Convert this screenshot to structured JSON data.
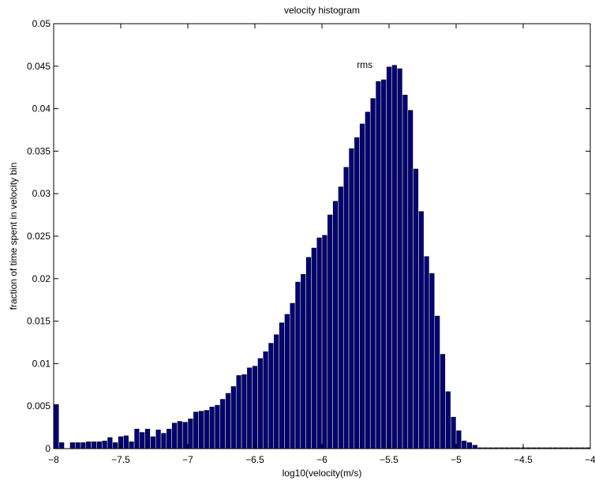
{
  "chart_data": {
    "type": "bar",
    "title": "velocity histogram",
    "xlabel": "log10(velocity(m/s)",
    "ylabel": "fraction of time spent in velocity bin",
    "xlim": [
      -8,
      -4
    ],
    "ylim": [
      0,
      0.05
    ],
    "x_ticks": [
      -8,
      -7.5,
      -7,
      -6.5,
      -6,
      -5.5,
      -5,
      -4.5,
      -4
    ],
    "x_tick_labels": [
      "−8",
      "−7.5",
      "−7",
      "−6.5",
      "−6",
      "−5.5",
      "−5",
      "−4.5",
      "−4"
    ],
    "y_ticks": [
      0,
      0.005,
      0.01,
      0.015,
      0.02,
      0.025,
      0.03,
      0.035,
      0.04,
      0.045,
      0.05
    ],
    "y_tick_labels": [
      "0",
      "0.005",
      "0.01",
      "0.015",
      "0.02",
      "0.025",
      "0.03",
      "0.035",
      "0.04",
      "0.045",
      "0.05"
    ],
    "grid": false,
    "bar_color": "#00007f",
    "annotation": {
      "text": "rms",
      "x": -5.74,
      "y": 0.0448
    },
    "bin_width": 0.04,
    "x": [
      -7.98,
      -7.94,
      -7.9,
      -7.86,
      -7.82,
      -7.78,
      -7.74,
      -7.7,
      -7.66,
      -7.62,
      -7.58,
      -7.54,
      -7.5,
      -7.46,
      -7.42,
      -7.38,
      -7.34,
      -7.3,
      -7.26,
      -7.22,
      -7.18,
      -7.14,
      -7.1,
      -7.06,
      -7.02,
      -6.98,
      -6.94,
      -6.9,
      -6.86,
      -6.82,
      -6.78,
      -6.74,
      -6.7,
      -6.66,
      -6.62,
      -6.58,
      -6.54,
      -6.5,
      -6.46,
      -6.42,
      -6.38,
      -6.34,
      -6.3,
      -6.26,
      -6.22,
      -6.18,
      -6.14,
      -6.1,
      -6.06,
      -6.02,
      -5.98,
      -5.94,
      -5.9,
      -5.86,
      -5.82,
      -5.78,
      -5.74,
      -5.7,
      -5.66,
      -5.62,
      -5.58,
      -5.54,
      -5.5,
      -5.46,
      -5.42,
      -5.38,
      -5.34,
      -5.3,
      -5.26,
      -5.22,
      -5.18,
      -5.14,
      -5.1,
      -5.06,
      -5.02,
      -4.98,
      -4.94,
      -4.9,
      -4.86,
      -4.82,
      -4.78,
      -4.74,
      -4.7,
      -4.66,
      -4.62,
      -4.58,
      -4.54,
      -4.5,
      -4.46,
      -4.42,
      -4.38,
      -4.34,
      -4.3,
      -4.26,
      -4.22,
      -4.18,
      -4.14,
      -4.1,
      -4.06,
      -4.02
    ],
    "values": [
      0.0052,
      0.0007,
      0,
      0.0007,
      0.0007,
      0.0007,
      0.0008,
      0.0008,
      0.0008,
      0.0009,
      0.0013,
      0.0007,
      0.0014,
      0.0015,
      0.0008,
      0.0023,
      0.0019,
      0.0023,
      0.0014,
      0.0022,
      0.0018,
      0.0023,
      0.003,
      0.0032,
      0.0031,
      0.0035,
      0.0043,
      0.0044,
      0.0045,
      0.0049,
      0.0051,
      0.0058,
      0.0065,
      0.0073,
      0.0086,
      0.0087,
      0.0095,
      0.0097,
      0.0106,
      0.0114,
      0.0124,
      0.0134,
      0.0148,
      0.0158,
      0.0171,
      0.0196,
      0.0205,
      0.0225,
      0.0236,
      0.0248,
      0.0251,
      0.0275,
      0.0291,
      0.0308,
      0.0331,
      0.0353,
      0.0366,
      0.0382,
      0.0396,
      0.0412,
      0.0432,
      0.0434,
      0.0449,
      0.0451,
      0.0447,
      0.0416,
      0.0398,
      0.0329,
      0.0279,
      0.0226,
      0.0206,
      0.0156,
      0.0111,
      0.0067,
      0.0037,
      0.0021,
      0.0009,
      0.0007,
      0.0004,
      0.0001,
      0.0001,
      0.0001,
      0.0001,
      0.0001,
      0.0001,
      0.0001,
      0.0001,
      0.0001,
      0.0001,
      0.0001,
      0.0001,
      0.0001,
      0.0001,
      0.0001,
      0.0001,
      0.0001,
      0.0001,
      0.0001,
      0.0001,
      0.0001
    ]
  }
}
